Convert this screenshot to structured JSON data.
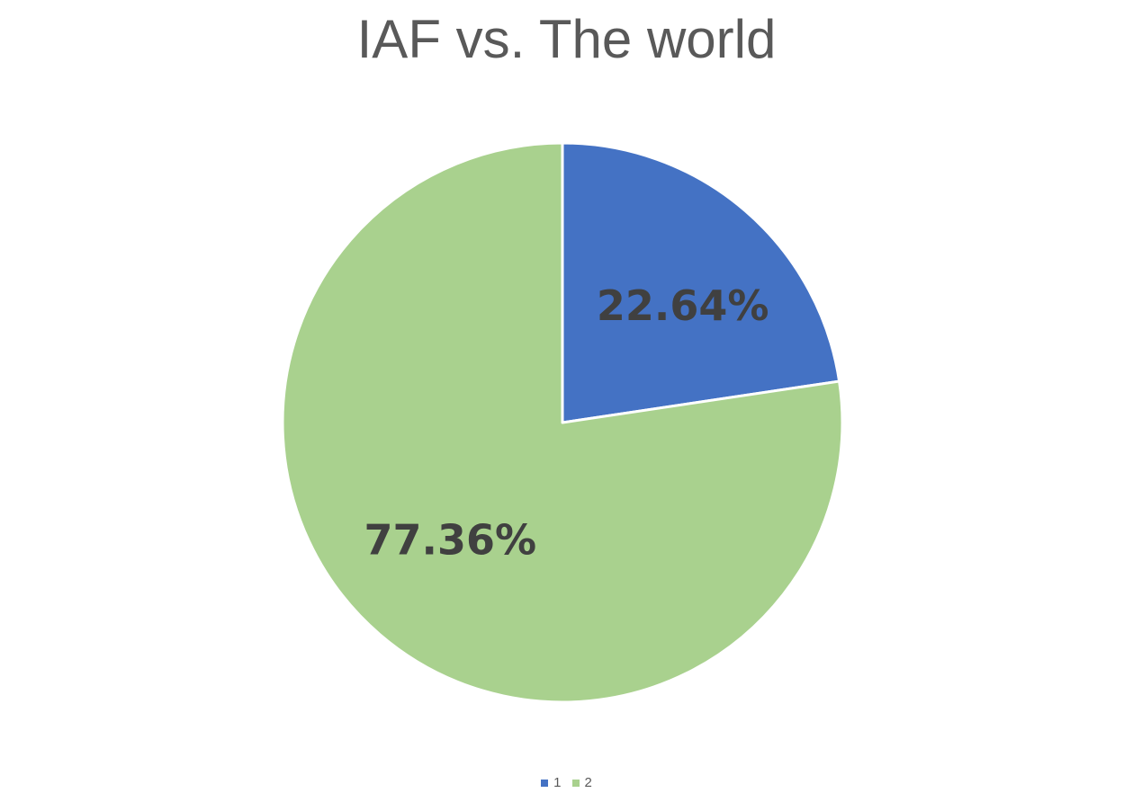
{
  "chart_data": {
    "type": "pie",
    "title": "IAF vs. The world",
    "categories": [
      "1",
      "2"
    ],
    "values": [
      22.64,
      77.36
    ],
    "value_labels": [
      "22.64%",
      "77.36%"
    ],
    "colors": [
      "#4472C4",
      "#A9D18E"
    ],
    "start_angle_deg": 0,
    "direction": "clockwise",
    "legend": {
      "position": "bottom",
      "entries": [
        "1",
        "2"
      ]
    }
  }
}
